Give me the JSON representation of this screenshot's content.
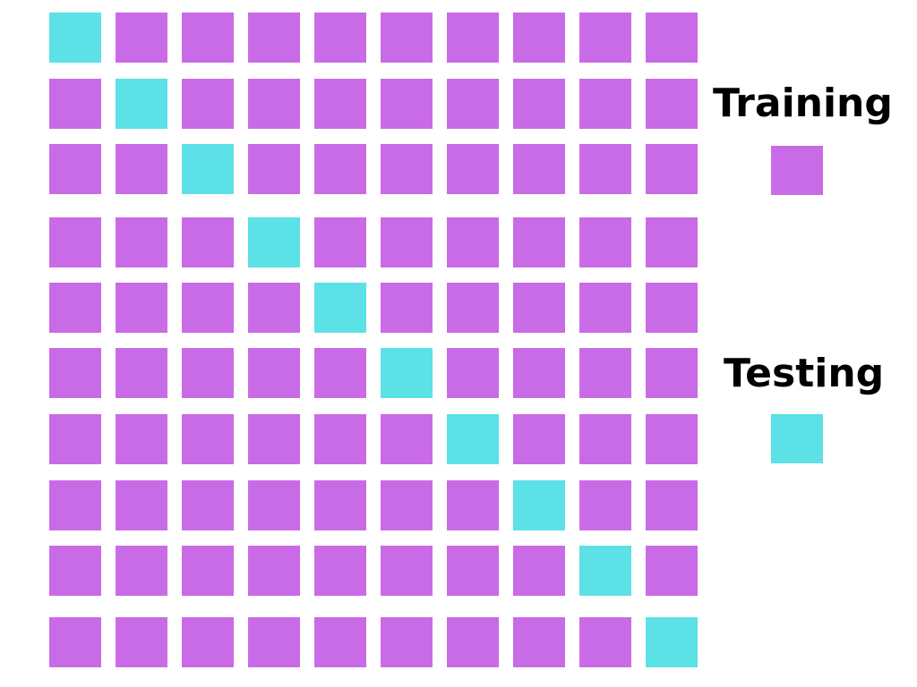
{
  "colors": {
    "training": "#c96be6",
    "testing": "#5ce1e6",
    "text": "#000000",
    "background": "#ffffff"
  },
  "grid": {
    "rows": 10,
    "cols": 10,
    "cells": [
      [
        "testing",
        "training",
        "training",
        "training",
        "training",
        "training",
        "training",
        "training",
        "training",
        "training"
      ],
      [
        "training",
        "testing",
        "training",
        "training",
        "training",
        "training",
        "training",
        "training",
        "training",
        "training"
      ],
      [
        "training",
        "training",
        "testing",
        "training",
        "training",
        "training",
        "training",
        "training",
        "training",
        "training"
      ],
      [
        "training",
        "training",
        "training",
        "testing",
        "training",
        "training",
        "training",
        "training",
        "training",
        "training"
      ],
      [
        "training",
        "training",
        "training",
        "training",
        "testing",
        "training",
        "training",
        "training",
        "training",
        "training"
      ],
      [
        "training",
        "training",
        "training",
        "training",
        "training",
        "testing",
        "training",
        "training",
        "training",
        "training"
      ],
      [
        "training",
        "training",
        "training",
        "training",
        "training",
        "training",
        "testing",
        "training",
        "training",
        "training"
      ],
      [
        "training",
        "training",
        "training",
        "training",
        "training",
        "training",
        "training",
        "testing",
        "training",
        "training"
      ],
      [
        "training",
        "training",
        "training",
        "training",
        "training",
        "training",
        "training",
        "training",
        "testing",
        "training"
      ],
      [
        "training",
        "training",
        "training",
        "training",
        "training",
        "training",
        "training",
        "training",
        "training",
        "testing"
      ]
    ]
  },
  "legend": {
    "training_label": "Training",
    "testing_label": "Testing"
  }
}
